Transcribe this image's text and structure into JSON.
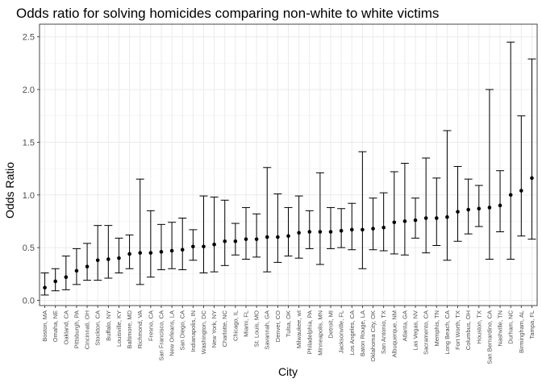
{
  "chart_data": {
    "type": "scatter",
    "title": "Odds ratio for solving homicides comparing non-white to white victims",
    "xlabel": "City",
    "ylabel": "Odds Ratio",
    "ylim": [
      -0.05,
      2.62
    ],
    "yticks": [
      0.0,
      0.5,
      1.0,
      1.5,
      2.0,
      2.5
    ],
    "ytick_labels": [
      "0.0",
      "0.5",
      "1.0",
      "1.5",
      "2.0",
      "2.5"
    ],
    "grid": true,
    "point_color": "#000000",
    "panel_background": "#ffffff",
    "grid_color": "#ebebeb",
    "cities": [
      "Boston, MA",
      "Omaha, NE",
      "Oakland, CA",
      "Pittsburgh, PA",
      "Cincinnati, OH",
      "Stockton, CA",
      "Buffalo, NY",
      "Louisville, KY",
      "Baltimore, MD",
      "Richmond, VA",
      "Fresno, CA",
      "San Francisco, CA",
      "New Orleans, LA",
      "San Diego, CA",
      "Indianapolis, IN",
      "Washington, DC",
      "New York, NY",
      "Charlotte, NC",
      "Chicago, IL",
      "Miami, FL",
      "St. Louis, MO",
      "Savannah, GA",
      "Denver, CO",
      "Tulsa, OK",
      "Milwaukee, wI",
      "Philadelphia, PA",
      "Minneapolis, MN",
      "Detroit, MI",
      "Jacksonville, FL",
      "Los Angeles, CA",
      "Baton Rouge, LA",
      "Oklahoma City, OK",
      "San Antonio, TX",
      "Albuquerque, NM",
      "Atlanta, GA",
      "Las Vegas, NV",
      "Sacramento, CA",
      "Memphis, TN",
      "Long Beach, CA",
      "Fort Worth, TX",
      "Columbus, OH",
      "Houston, TX",
      "San Bernardino, CA",
      "Nashville, TN",
      "Durham, NC",
      "Birmingham, AL",
      "Tampa, FL"
    ],
    "odds_ratio": [
      0.12,
      0.18,
      0.22,
      0.28,
      0.32,
      0.38,
      0.39,
      0.4,
      0.44,
      0.45,
      0.45,
      0.46,
      0.47,
      0.48,
      0.51,
      0.51,
      0.53,
      0.56,
      0.56,
      0.58,
      0.58,
      0.6,
      0.6,
      0.61,
      0.64,
      0.65,
      0.65,
      0.65,
      0.66,
      0.67,
      0.67,
      0.68,
      0.69,
      0.74,
      0.75,
      0.76,
      0.78,
      0.78,
      0.79,
      0.84,
      0.86,
      0.87,
      0.88,
      0.9,
      1.0,
      1.04,
      1.16
    ],
    "ci_low": [
      0.05,
      0.09,
      0.1,
      0.15,
      0.19,
      0.19,
      0.21,
      0.26,
      0.3,
      0.15,
      0.22,
      0.29,
      0.3,
      0.29,
      0.38,
      0.26,
      0.27,
      0.33,
      0.43,
      0.39,
      0.41,
      0.27,
      0.36,
      0.42,
      0.4,
      0.49,
      0.34,
      0.49,
      0.5,
      0.48,
      0.3,
      0.48,
      0.47,
      0.44,
      0.43,
      0.59,
      0.45,
      0.52,
      0.38,
      0.56,
      0.63,
      0.7,
      0.39,
      0.65,
      0.39,
      0.61,
      0.58
    ],
    "ci_high": [
      0.26,
      0.3,
      0.42,
      0.49,
      0.54,
      0.71,
      0.71,
      0.59,
      0.62,
      1.15,
      0.85,
      0.72,
      0.74,
      0.78,
      0.67,
      0.99,
      0.98,
      0.95,
      0.73,
      0.88,
      0.82,
      1.26,
      1.01,
      0.88,
      0.99,
      0.85,
      1.21,
      0.88,
      0.87,
      0.92,
      1.41,
      0.97,
      1.02,
      1.22,
      1.3,
      0.97,
      1.35,
      1.16,
      1.61,
      1.27,
      1.15,
      1.09,
      2.0,
      1.23,
      2.45,
      1.75,
      2.29
    ]
  }
}
